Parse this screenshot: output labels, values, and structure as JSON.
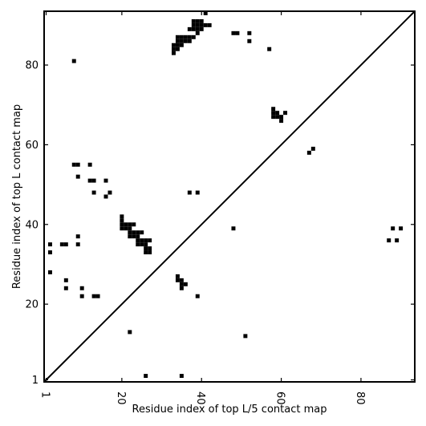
{
  "chart_data": {
    "type": "heatmap",
    "title": "",
    "xlabel": "Residue index of top L/5 contact map",
    "ylabel": "Residue index of top L contact map",
    "xlim": [
      0.5,
      93.5
    ],
    "ylim": [
      0.5,
      93.5
    ],
    "xticks": [
      1,
      20,
      40,
      60,
      80
    ],
    "yticks": [
      1,
      20,
      40,
      60,
      80
    ],
    "tick_label_rotation_x": 90,
    "diagonal": true,
    "grid": false,
    "colors": {
      "cell": "#000000",
      "frame": "#000000",
      "background": "#ffffff"
    },
    "series": [
      {
        "name": "",
        "points": [
          [
            41,
            93
          ],
          [
            38,
            91
          ],
          [
            39,
            91
          ],
          [
            40,
            91
          ],
          [
            38,
            90
          ],
          [
            39,
            90
          ],
          [
            40,
            90
          ],
          [
            41,
            90
          ],
          [
            42,
            90
          ],
          [
            37,
            89
          ],
          [
            38,
            89
          ],
          [
            39,
            89
          ],
          [
            40,
            89
          ],
          [
            39,
            88
          ],
          [
            48,
            88
          ],
          [
            49,
            88
          ],
          [
            52,
            88
          ],
          [
            34,
            87
          ],
          [
            35,
            87
          ],
          [
            36,
            87
          ],
          [
            37,
            87
          ],
          [
            38,
            87
          ],
          [
            34,
            86
          ],
          [
            35,
            86
          ],
          [
            36,
            86
          ],
          [
            37,
            86
          ],
          [
            52,
            86
          ],
          [
            33,
            85
          ],
          [
            34,
            85
          ],
          [
            35,
            85
          ],
          [
            33,
            84
          ],
          [
            34,
            84
          ],
          [
            57,
            84
          ],
          [
            33,
            83
          ],
          [
            8,
            81
          ],
          [
            58,
            69
          ],
          [
            58,
            68
          ],
          [
            59,
            68
          ],
          [
            61,
            68
          ],
          [
            58,
            67
          ],
          [
            59,
            67
          ],
          [
            60,
            67
          ],
          [
            60,
            66
          ],
          [
            68,
            59
          ],
          [
            67,
            58
          ],
          [
            8,
            55
          ],
          [
            9,
            55
          ],
          [
            12,
            55
          ],
          [
            9,
            52
          ],
          [
            12,
            51
          ],
          [
            13,
            51
          ],
          [
            16,
            51
          ],
          [
            13,
            48
          ],
          [
            17,
            48
          ],
          [
            37,
            48
          ],
          [
            39,
            48
          ],
          [
            16,
            47
          ],
          [
            20,
            42
          ],
          [
            20,
            41
          ],
          [
            20,
            40
          ],
          [
            21,
            40
          ],
          [
            22,
            40
          ],
          [
            23,
            40
          ],
          [
            20,
            39
          ],
          [
            21,
            39
          ],
          [
            22,
            39
          ],
          [
            48,
            39
          ],
          [
            88,
            39
          ],
          [
            90,
            39
          ],
          [
            22,
            38
          ],
          [
            23,
            38
          ],
          [
            24,
            38
          ],
          [
            25,
            38
          ],
          [
            9,
            37
          ],
          [
            22,
            37
          ],
          [
            23,
            37
          ],
          [
            24,
            37
          ],
          [
            24,
            36
          ],
          [
            25,
            36
          ],
          [
            26,
            36
          ],
          [
            27,
            36
          ],
          [
            87,
            36
          ],
          [
            89,
            36
          ],
          [
            2,
            35
          ],
          [
            5,
            35
          ],
          [
            6,
            35
          ],
          [
            9,
            35
          ],
          [
            24,
            35
          ],
          [
            25,
            35
          ],
          [
            26,
            35
          ],
          [
            26,
            34
          ],
          [
            27,
            34
          ],
          [
            2,
            33
          ],
          [
            26,
            33
          ],
          [
            27,
            33
          ],
          [
            2,
            28
          ],
          [
            34,
            27
          ],
          [
            6,
            26
          ],
          [
            34,
            26
          ],
          [
            35,
            26
          ],
          [
            35,
            25
          ],
          [
            36,
            25
          ],
          [
            6,
            24
          ],
          [
            10,
            24
          ],
          [
            35,
            24
          ],
          [
            10,
            22
          ],
          [
            13,
            22
          ],
          [
            14,
            22
          ],
          [
            39,
            22
          ],
          [
            22,
            13
          ],
          [
            51,
            12
          ],
          [
            26,
            2
          ],
          [
            35,
            2
          ]
        ]
      }
    ]
  }
}
